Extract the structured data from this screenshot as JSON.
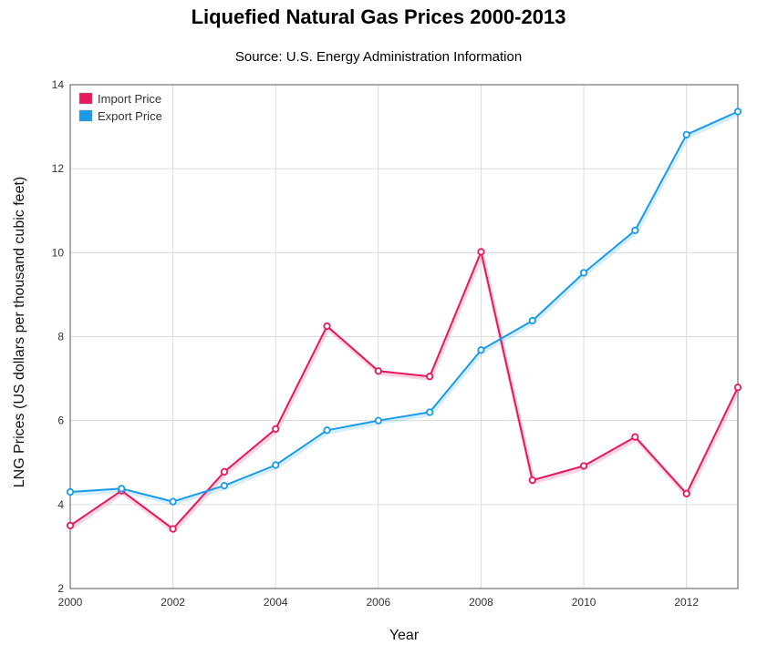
{
  "chart_data": {
    "type": "line",
    "title": "Liquefied Natural Gas Prices 2000-2013",
    "subtitle": "Source: U.S. Energy Administration Information",
    "xlabel": "Year",
    "ylabel": "LNG Prices (US dollars per thousand cubic feet)",
    "x": [
      2000,
      2001,
      2002,
      2003,
      2004,
      2005,
      2006,
      2007,
      2008,
      2009,
      2010,
      2011,
      2012,
      2013
    ],
    "xlim": [
      2000,
      2013
    ],
    "ylim": [
      2,
      14
    ],
    "xticks": [
      "2000",
      "2002",
      "2004",
      "2006",
      "2008",
      "2010",
      "2012"
    ],
    "yticks": [
      "2",
      "4",
      "6",
      "8",
      "10",
      "12",
      "14"
    ],
    "grid": true,
    "legend_position": "top-left",
    "series": [
      {
        "name": "Import Price",
        "color": "#e8185d",
        "values": [
          3.5,
          4.33,
          3.42,
          4.78,
          5.8,
          8.25,
          7.18,
          7.05,
          10.02,
          4.58,
          4.92,
          5.61,
          4.26,
          6.79
        ]
      },
      {
        "name": "Export Price",
        "color": "#1a9be8",
        "values": [
          4.3,
          4.38,
          4.07,
          4.45,
          4.94,
          5.77,
          6.0,
          6.2,
          7.68,
          8.38,
          9.52,
          10.53,
          12.81,
          13.36
        ]
      }
    ]
  }
}
